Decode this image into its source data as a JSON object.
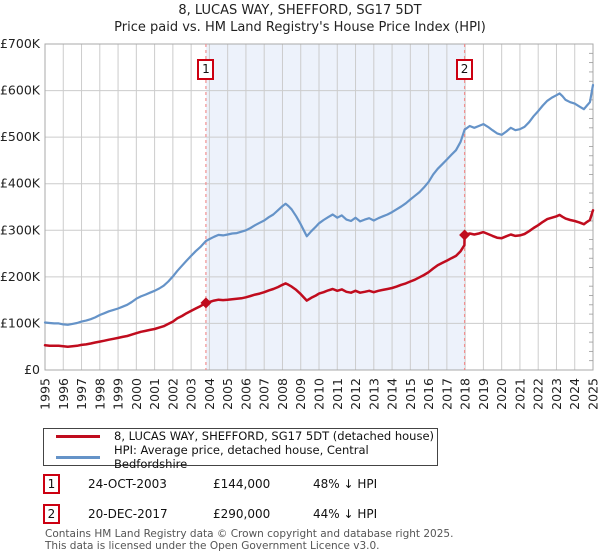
{
  "title": "8, LUCAS WAY, SHEFFORD, SG17 5DT",
  "subtitle": "Price paid vs. HM Land Registry's House Price Index (HPI)",
  "colors": {
    "property_line": "#c00c1e",
    "hpi_line": "#6593c8",
    "shade_fill": "#edf2fb",
    "event_dashed_line": "#f09090",
    "grid": "#cccccc",
    "axis_border": "#a9a9a9",
    "minor_tick": "#999999",
    "badge_border": "#cc0011",
    "footer_text": "#555555"
  },
  "chart_data": {
    "type": "line",
    "title": "8, LUCAS WAY, SHEFFORD, SG17 5DT",
    "subtitle": "Price paid vs. HM Land Registry's House Price Index (HPI)",
    "x_axis": {
      "range": [
        1995,
        2025
      ],
      "tick_years": [
        1995,
        1996,
        1997,
        1998,
        1999,
        2000,
        2001,
        2002,
        2003,
        2004,
        2005,
        2006,
        2007,
        2008,
        2009,
        2010,
        2011,
        2012,
        2013,
        2014,
        2015,
        2016,
        2017,
        2018,
        2019,
        2020,
        2021,
        2022,
        2023,
        2024,
        2025
      ]
    },
    "y_axis": {
      "range_k": [
        0,
        700
      ],
      "tick_values_k": [
        0,
        100,
        200,
        300,
        400,
        500,
        600,
        700
      ],
      "tick_labels": [
        "£0",
        "£100K",
        "£200K",
        "£300K",
        "£400K",
        "£500K",
        "£600K",
        "£700K"
      ],
      "minor_tick_step_k": 20
    },
    "grid": true,
    "legend_position": "bottom",
    "shaded_span_years": [
      2003.81,
      2017.97
    ],
    "events": [
      {
        "label": "1",
        "year": 2003.81,
        "value_k": 144
      },
      {
        "label": "2",
        "year": 2017.97,
        "value_k": 290
      }
    ],
    "series": [
      {
        "name": "HPI: Average price, detached house, Central Bedfordshire",
        "color_key": "hpi_line",
        "points": [
          [
            1995,
            102
          ],
          [
            1995.25,
            101
          ],
          [
            1995.5,
            100
          ],
          [
            1995.75,
            100
          ],
          [
            1996,
            98
          ],
          [
            1996.25,
            97
          ],
          [
            1996.5,
            99
          ],
          [
            1996.75,
            101
          ],
          [
            1997,
            104
          ],
          [
            1997.25,
            106
          ],
          [
            1997.5,
            109
          ],
          [
            1997.75,
            113
          ],
          [
            1998,
            118
          ],
          [
            1998.25,
            122
          ],
          [
            1998.5,
            126
          ],
          [
            1998.75,
            129
          ],
          [
            1999,
            132
          ],
          [
            1999.25,
            136
          ],
          [
            1999.5,
            140
          ],
          [
            1999.75,
            146
          ],
          [
            2000,
            153
          ],
          [
            2000.25,
            158
          ],
          [
            2000.5,
            162
          ],
          [
            2000.75,
            166
          ],
          [
            2001,
            170
          ],
          [
            2001.25,
            175
          ],
          [
            2001.5,
            181
          ],
          [
            2001.75,
            190
          ],
          [
            2002,
            201
          ],
          [
            2002.25,
            213
          ],
          [
            2002.5,
            224
          ],
          [
            2002.75,
            235
          ],
          [
            2003,
            245
          ],
          [
            2003.25,
            255
          ],
          [
            2003.5,
            264
          ],
          [
            2003.81,
            277
          ],
          [
            2004,
            281
          ],
          [
            2004.25,
            286
          ],
          [
            2004.5,
            290
          ],
          [
            2004.75,
            289
          ],
          [
            2005,
            291
          ],
          [
            2005.25,
            293
          ],
          [
            2005.5,
            294
          ],
          [
            2005.75,
            297
          ],
          [
            2006,
            300
          ],
          [
            2006.25,
            305
          ],
          [
            2006.5,
            311
          ],
          [
            2006.75,
            316
          ],
          [
            2007,
            321
          ],
          [
            2007.25,
            328
          ],
          [
            2007.5,
            334
          ],
          [
            2007.75,
            343
          ],
          [
            2008,
            352
          ],
          [
            2008.17,
            357
          ],
          [
            2008.33,
            352
          ],
          [
            2008.5,
            345
          ],
          [
            2008.75,
            330
          ],
          [
            2009,
            313
          ],
          [
            2009.33,
            287
          ],
          [
            2009.58,
            298
          ],
          [
            2009.83,
            308
          ],
          [
            2010,
            315
          ],
          [
            2010.25,
            322
          ],
          [
            2010.5,
            328
          ],
          [
            2010.75,
            334
          ],
          [
            2011,
            327
          ],
          [
            2011.25,
            332
          ],
          [
            2011.5,
            323
          ],
          [
            2011.75,
            320
          ],
          [
            2012,
            327
          ],
          [
            2012.25,
            319
          ],
          [
            2012.5,
            323
          ],
          [
            2012.75,
            326
          ],
          [
            2013,
            321
          ],
          [
            2013.25,
            326
          ],
          [
            2013.5,
            330
          ],
          [
            2013.75,
            334
          ],
          [
            2014,
            339
          ],
          [
            2014.25,
            345
          ],
          [
            2014.5,
            351
          ],
          [
            2014.75,
            358
          ],
          [
            2015,
            366
          ],
          [
            2015.25,
            374
          ],
          [
            2015.5,
            382
          ],
          [
            2015.75,
            392
          ],
          [
            2016,
            404
          ],
          [
            2016.25,
            420
          ],
          [
            2016.5,
            432
          ],
          [
            2016.75,
            442
          ],
          [
            2017,
            452
          ],
          [
            2017.25,
            462
          ],
          [
            2017.5,
            472
          ],
          [
            2017.75,
            490
          ],
          [
            2017.97,
            516
          ],
          [
            2018.25,
            524
          ],
          [
            2018.5,
            520
          ],
          [
            2018.75,
            524
          ],
          [
            2019,
            528
          ],
          [
            2019.25,
            522
          ],
          [
            2019.5,
            515
          ],
          [
            2019.75,
            508
          ],
          [
            2020,
            505
          ],
          [
            2020.25,
            512
          ],
          [
            2020.5,
            520
          ],
          [
            2020.75,
            515
          ],
          [
            2021,
            517
          ],
          [
            2021.25,
            522
          ],
          [
            2021.5,
            532
          ],
          [
            2021.75,
            545
          ],
          [
            2022,
            556
          ],
          [
            2022.25,
            568
          ],
          [
            2022.5,
            578
          ],
          [
            2022.75,
            585
          ],
          [
            2023,
            590
          ],
          [
            2023.17,
            594
          ],
          [
            2023.33,
            588
          ],
          [
            2023.5,
            580
          ],
          [
            2023.75,
            575
          ],
          [
            2024,
            572
          ],
          [
            2024.25,
            566
          ],
          [
            2024.5,
            560
          ],
          [
            2024.67,
            568
          ],
          [
            2024.83,
            575
          ],
          [
            2025,
            612
          ]
        ]
      },
      {
        "name": "8, LUCAS WAY, SHEFFORD, SG17 5DT (detached house)",
        "color_key": "property_line",
        "points": [
          [
            1995,
            53
          ],
          [
            1995.25,
            52
          ],
          [
            1995.5,
            52
          ],
          [
            1995.75,
            52
          ],
          [
            1996,
            51
          ],
          [
            1996.25,
            50
          ],
          [
            1996.5,
            51
          ],
          [
            1996.75,
            52
          ],
          [
            1997,
            54
          ],
          [
            1997.25,
            55
          ],
          [
            1997.5,
            57
          ],
          [
            1997.75,
            59
          ],
          [
            1998,
            61
          ],
          [
            1998.25,
            63
          ],
          [
            1998.5,
            65
          ],
          [
            1998.75,
            67
          ],
          [
            1999,
            69
          ],
          [
            1999.25,
            71
          ],
          [
            1999.5,
            73
          ],
          [
            1999.75,
            76
          ],
          [
            2000,
            79
          ],
          [
            2000.25,
            82
          ],
          [
            2000.5,
            84
          ],
          [
            2000.75,
            86
          ],
          [
            2001,
            88
          ],
          [
            2001.25,
            91
          ],
          [
            2001.5,
            94
          ],
          [
            2001.75,
            99
          ],
          [
            2002,
            104
          ],
          [
            2002.25,
            111
          ],
          [
            2002.5,
            116
          ],
          [
            2002.75,
            122
          ],
          [
            2003,
            127
          ],
          [
            2003.25,
            132
          ],
          [
            2003.5,
            137
          ],
          [
            2003.81,
            144
          ],
          [
            2004,
            146
          ],
          [
            2004.25,
            149
          ],
          [
            2004.5,
            151
          ],
          [
            2004.75,
            150
          ],
          [
            2005,
            151
          ],
          [
            2005.25,
            152
          ],
          [
            2005.5,
            153
          ],
          [
            2005.75,
            154
          ],
          [
            2006,
            156
          ],
          [
            2006.25,
            159
          ],
          [
            2006.5,
            162
          ],
          [
            2006.75,
            164
          ],
          [
            2007,
            167
          ],
          [
            2007.25,
            171
          ],
          [
            2007.5,
            174
          ],
          [
            2007.75,
            178
          ],
          [
            2008,
            183
          ],
          [
            2008.17,
            186
          ],
          [
            2008.33,
            183
          ],
          [
            2008.5,
            179
          ],
          [
            2008.75,
            172
          ],
          [
            2009,
            163
          ],
          [
            2009.33,
            149
          ],
          [
            2009.58,
            155
          ],
          [
            2009.83,
            160
          ],
          [
            2010,
            164
          ],
          [
            2010.25,
            167
          ],
          [
            2010.5,
            171
          ],
          [
            2010.75,
            174
          ],
          [
            2011,
            170
          ],
          [
            2011.25,
            173
          ],
          [
            2011.5,
            168
          ],
          [
            2011.75,
            166
          ],
          [
            2012,
            170
          ],
          [
            2012.25,
            166
          ],
          [
            2012.5,
            168
          ],
          [
            2012.75,
            170
          ],
          [
            2013,
            167
          ],
          [
            2013.25,
            170
          ],
          [
            2013.5,
            172
          ],
          [
            2013.75,
            174
          ],
          [
            2014,
            176
          ],
          [
            2014.25,
            179
          ],
          [
            2014.5,
            183
          ],
          [
            2014.75,
            186
          ],
          [
            2015,
            190
          ],
          [
            2015.25,
            194
          ],
          [
            2015.5,
            199
          ],
          [
            2015.75,
            204
          ],
          [
            2016,
            210
          ],
          [
            2016.25,
            218
          ],
          [
            2016.5,
            225
          ],
          [
            2016.75,
            230
          ],
          [
            2017,
            235
          ],
          [
            2017.25,
            240
          ],
          [
            2017.5,
            245
          ],
          [
            2017.75,
            255
          ],
          [
            2017.96,
            268
          ],
          [
            2017.97,
            290
          ],
          [
            2018.25,
            293
          ],
          [
            2018.5,
            291
          ],
          [
            2018.75,
            293
          ],
          [
            2019,
            296
          ],
          [
            2019.25,
            292
          ],
          [
            2019.5,
            288
          ],
          [
            2019.75,
            284
          ],
          [
            2020,
            283
          ],
          [
            2020.25,
            287
          ],
          [
            2020.5,
            291
          ],
          [
            2020.75,
            288
          ],
          [
            2021,
            289
          ],
          [
            2021.25,
            292
          ],
          [
            2021.5,
            298
          ],
          [
            2021.75,
            305
          ],
          [
            2022,
            311
          ],
          [
            2022.25,
            318
          ],
          [
            2022.5,
            324
          ],
          [
            2022.75,
            327
          ],
          [
            2023,
            330
          ],
          [
            2023.17,
            333
          ],
          [
            2023.33,
            329
          ],
          [
            2023.5,
            325
          ],
          [
            2023.75,
            322
          ],
          [
            2024,
            320
          ],
          [
            2024.25,
            317
          ],
          [
            2024.5,
            313
          ],
          [
            2024.67,
            318
          ],
          [
            2024.83,
            322
          ],
          [
            2025,
            343
          ]
        ]
      }
    ]
  },
  "legend": {
    "items": [
      {
        "label": "8, LUCAS WAY, SHEFFORD, SG17 5DT (detached house)",
        "color_key": "property_line"
      },
      {
        "label": "HPI: Average price, detached house, Central Bedfordshire",
        "color_key": "hpi_line"
      }
    ]
  },
  "annotations": [
    {
      "num": "1",
      "date": "24-OCT-2003",
      "price": "£144,000",
      "hpi": "48% ↓ HPI"
    },
    {
      "num": "2",
      "date": "20-DEC-2017",
      "price": "£290,000",
      "hpi": "44% ↓ HPI"
    }
  ],
  "footer": {
    "line1": "Contains HM Land Registry data © Crown copyright and database right 2025.",
    "line2": "This data is licensed under the Open Government Licence v3.0."
  }
}
